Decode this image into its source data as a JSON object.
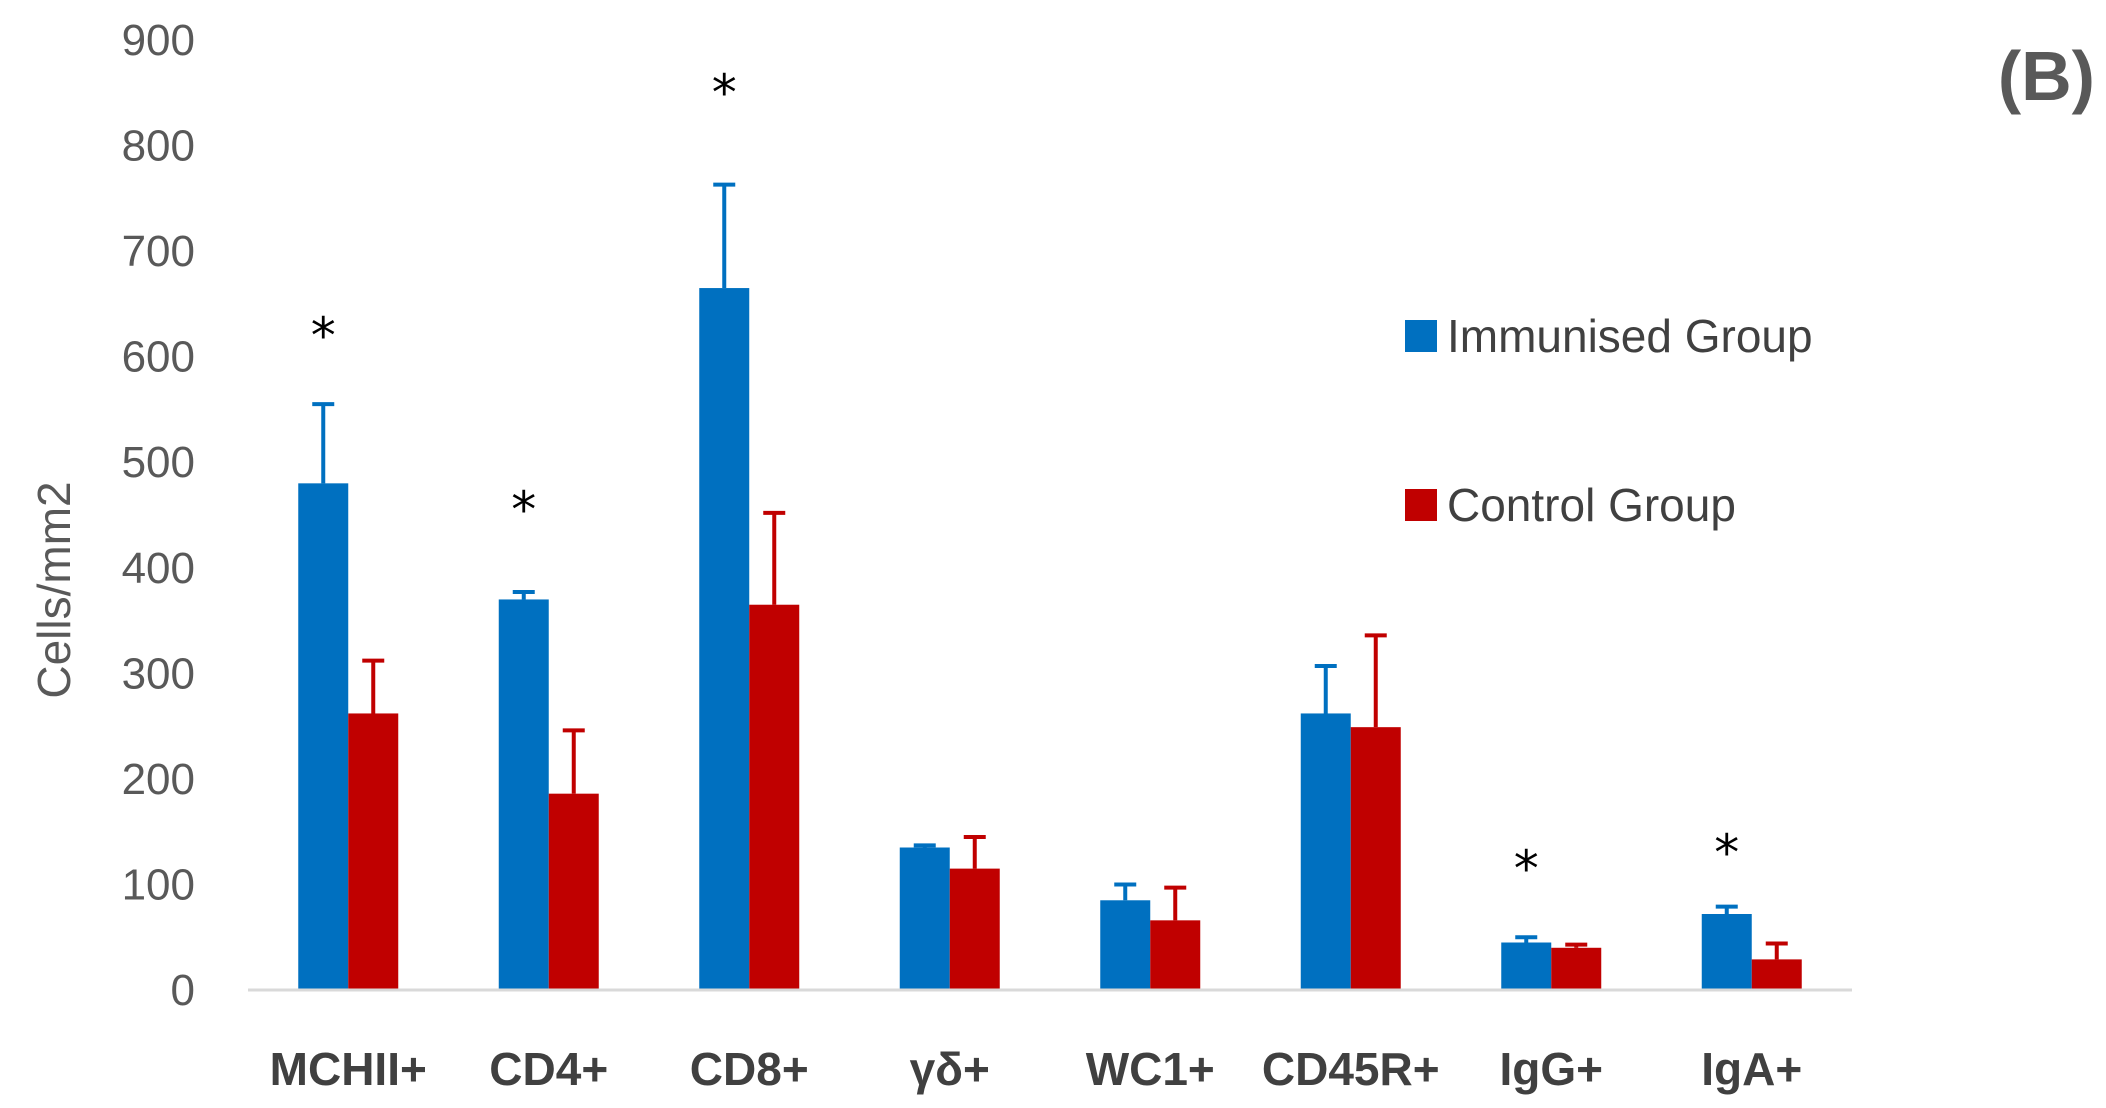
{
  "chart_data": {
    "type": "bar",
    "panel_label": "(B)",
    "title": "",
    "xlabel": "",
    "ylabel": "Cells/mm2",
    "ylim": [
      0,
      900
    ],
    "yticks": [
      0,
      100,
      200,
      300,
      400,
      500,
      600,
      700,
      800,
      900
    ],
    "grid": false,
    "legend_position": "right",
    "categories": [
      "MCHII+",
      "CD4+",
      "CD8+",
      "γδ+",
      "WC1+",
      "CD45R+",
      "IgG+",
      "IgA+"
    ],
    "series": [
      {
        "name": "Immunised Group",
        "color": "#0070c0",
        "values": [
          480,
          370,
          665,
          135,
          85,
          262,
          45,
          72
        ],
        "errors": [
          75,
          7,
          98,
          2,
          15,
          45,
          5,
          7
        ]
      },
      {
        "name": "Control Group",
        "color": "#c00000",
        "values": [
          262,
          186,
          365,
          115,
          66,
          249,
          40,
          29
        ],
        "errors": [
          50,
          60,
          87,
          30,
          31,
          87,
          3,
          15
        ]
      }
    ],
    "significance": [
      "*",
      "*",
      "*",
      "",
      "",
      "",
      "*",
      "*"
    ],
    "significance_heights": [
      630,
      465,
      860,
      0,
      0,
      0,
      125,
      140
    ]
  }
}
